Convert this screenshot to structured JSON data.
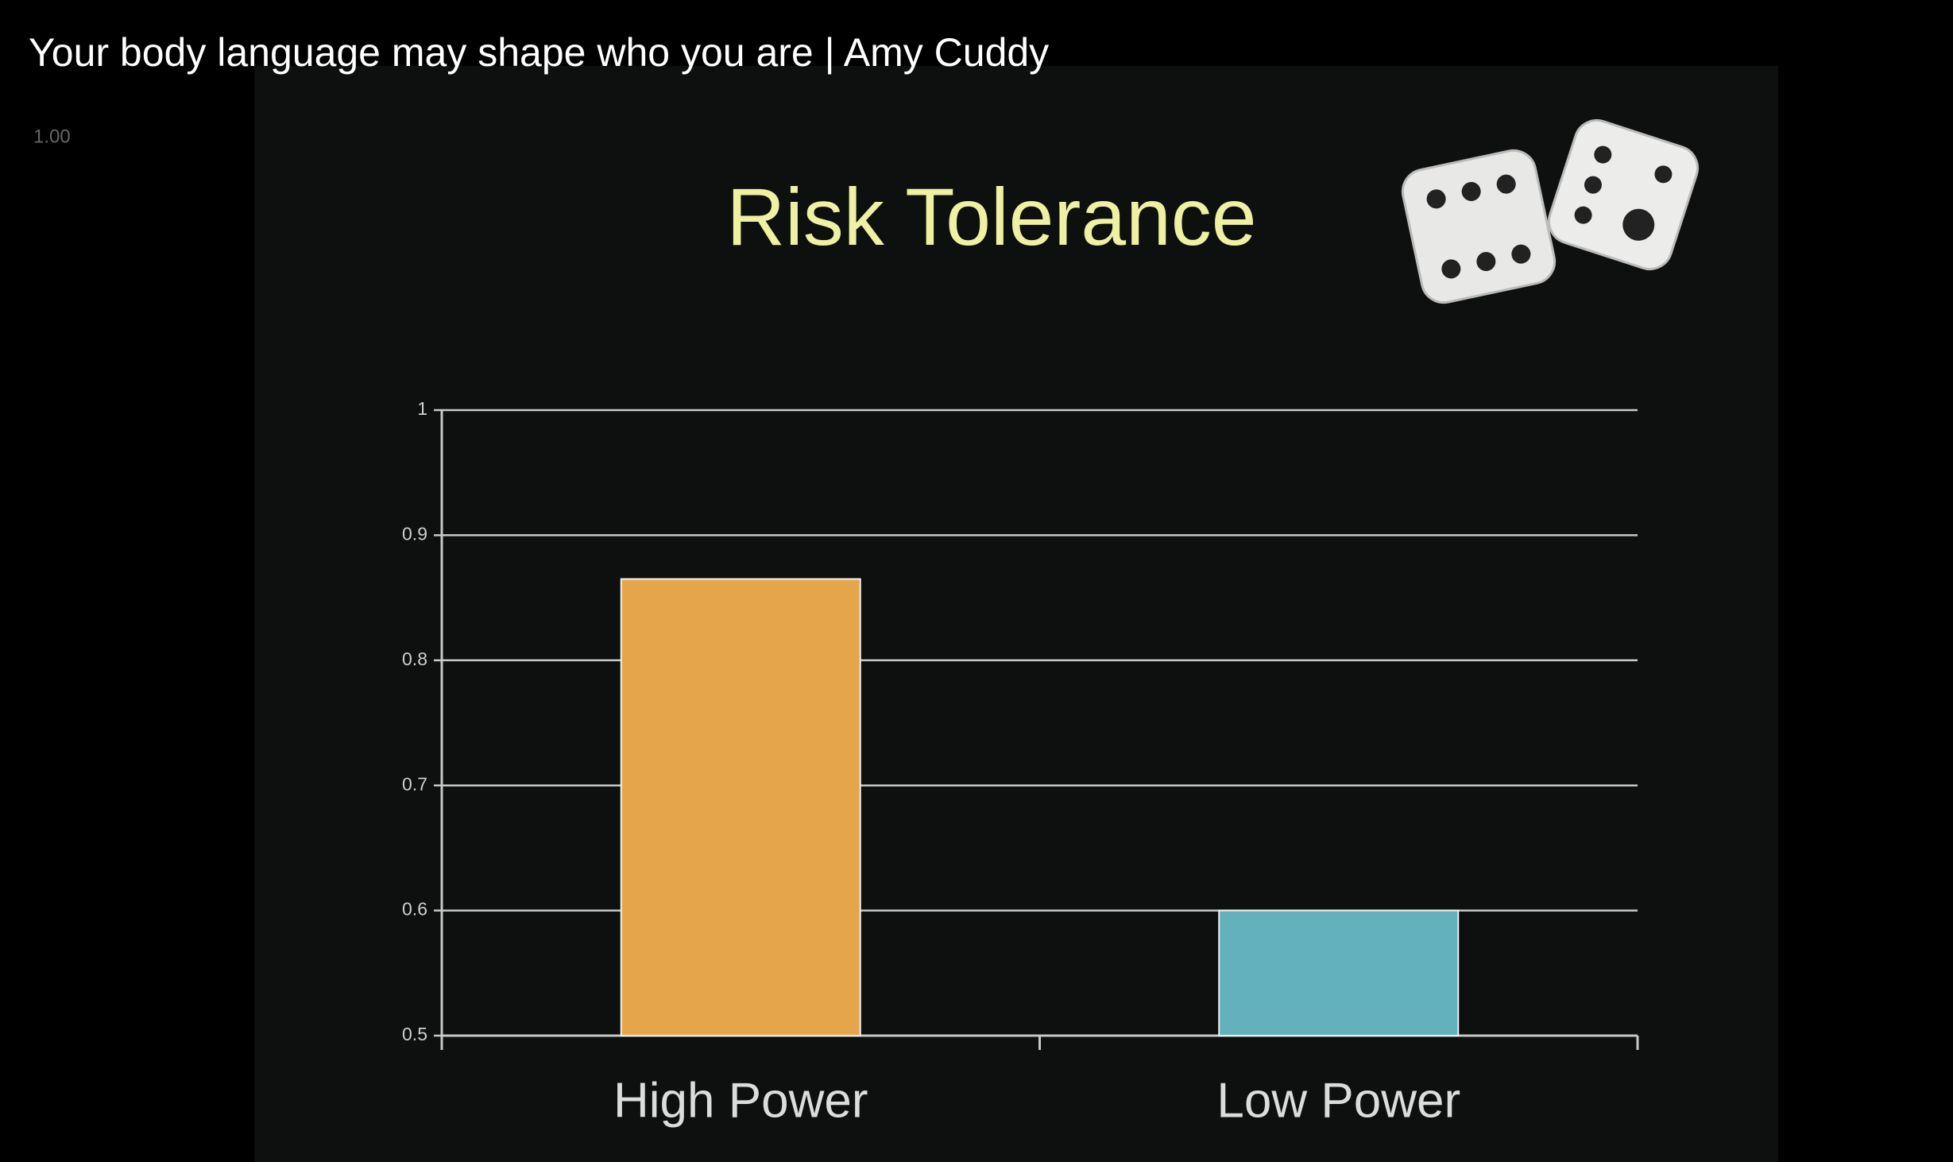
{
  "video": {
    "title": "Your body language may shape who you are | Amy Cuddy",
    "speed": "1.00"
  },
  "chart_data": {
    "type": "bar",
    "title": "Risk Tolerance",
    "categories": [
      "High Power",
      "Low Power"
    ],
    "series": [
      {
        "colors": [
          "#e5a64b",
          "#64b1be"
        ],
        "values": [
          0.865,
          0.6
        ]
      }
    ],
    "ylim": [
      0.5,
      1
    ],
    "yticks": [
      0.5,
      0.6,
      0.7,
      0.8,
      0.9,
      1
    ],
    "grid": true
  }
}
